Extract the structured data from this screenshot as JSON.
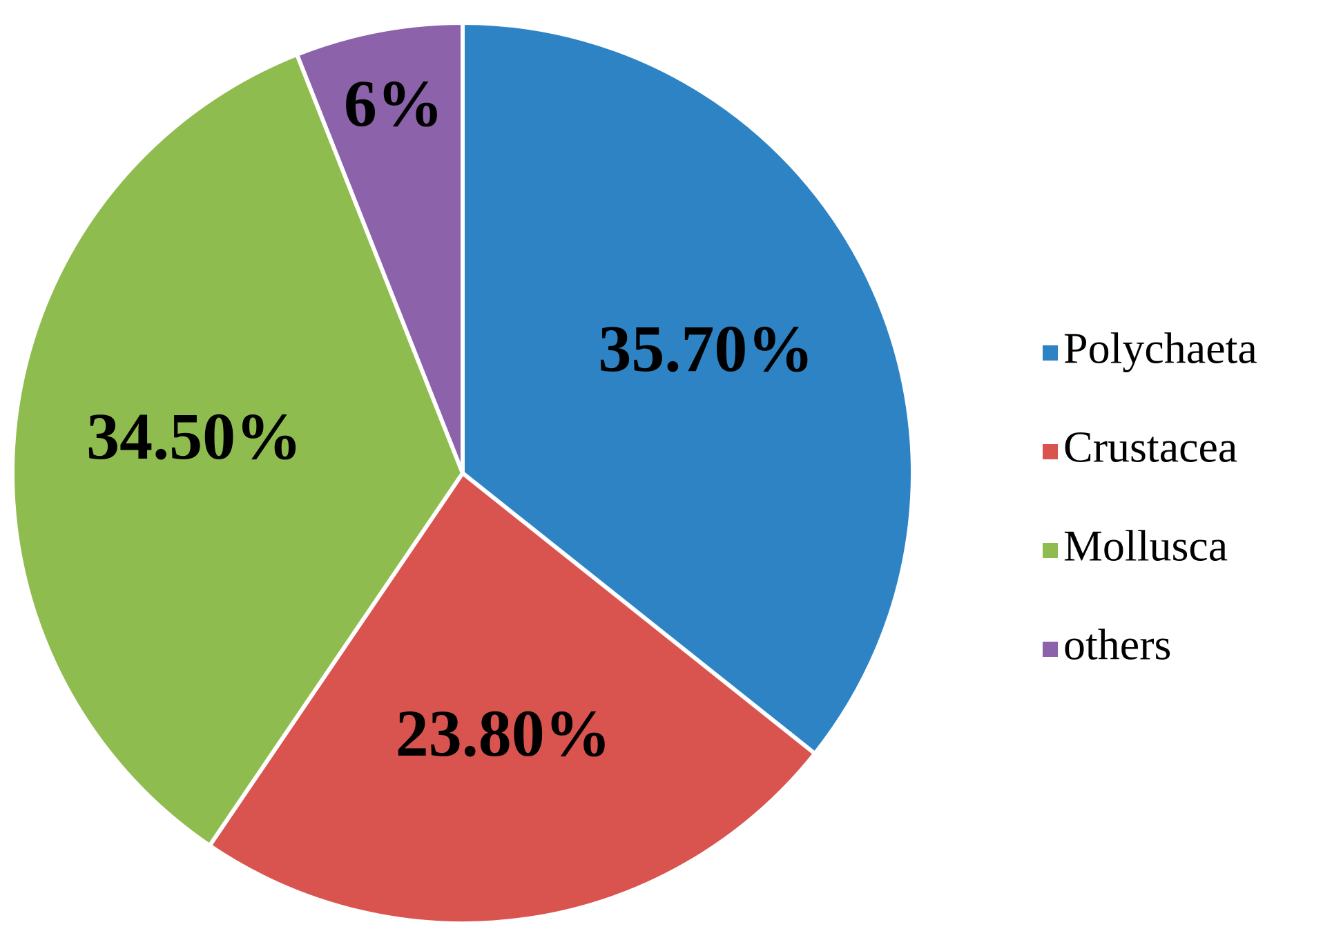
{
  "chart_data": {
    "type": "pie",
    "categories": [
      "Polychaeta",
      "Crustacea",
      "Mollusca",
      "others"
    ],
    "values": [
      35.7,
      23.8,
      34.5,
      6
    ],
    "value_labels": [
      "35.70%",
      "23.80%",
      "34.50%",
      "6%"
    ],
    "colors": [
      "#2e83c4",
      "#d9534f",
      "#8fbc4f",
      "#8c62aa"
    ],
    "legend": "right"
  }
}
